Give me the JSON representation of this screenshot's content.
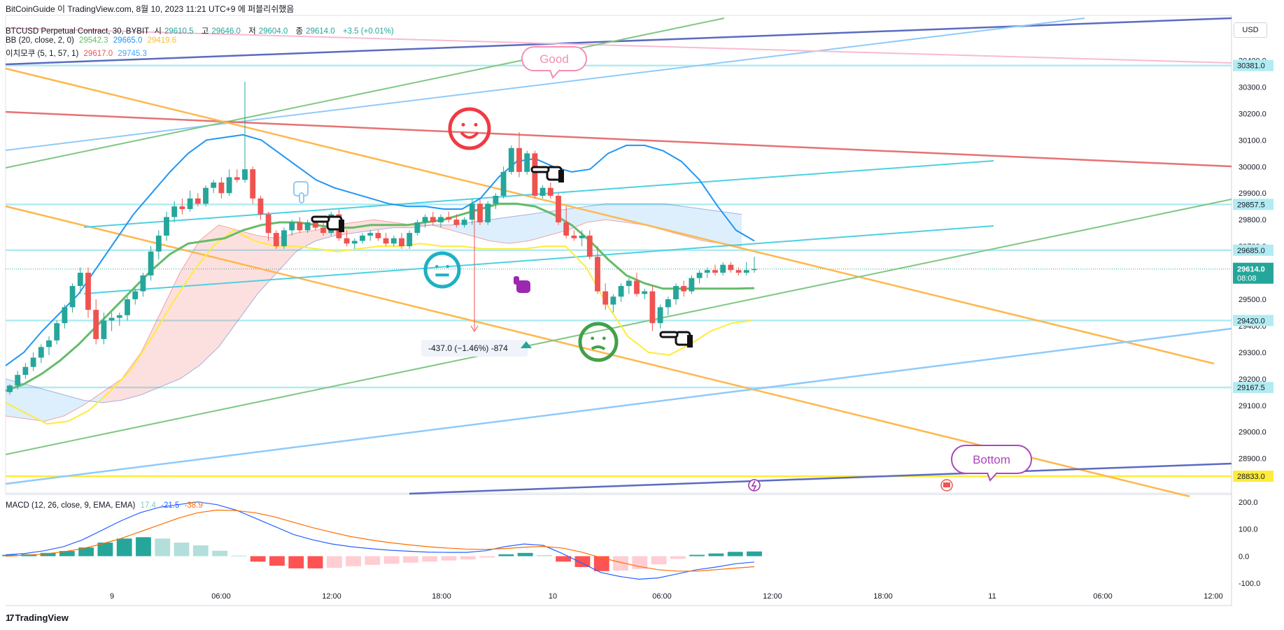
{
  "header": {
    "brand": "BitCoinGuide 이 TradingView.com, 8월 10, 2023 11:21 UTC+9 에 퍼블리쉬했음",
    "symbol": "BTCUSD Perpetual Contract, 30, BYBIT",
    "o_label": "시",
    "o": "29610.5",
    "h_label": "고",
    "h": "29646.0",
    "l_label": "저",
    "l": "29604.0",
    "c_label": "종",
    "c": "29614.0",
    "change": "+3.5 (+0.01%)",
    "bb_label": "BB (20, close, 2, 0)",
    "bb_vals": [
      "29542.3",
      "29665.0",
      "29419.6"
    ],
    "ichimoku_label": "이치모쿠 (5, 1, 57, 1)",
    "ichimoku_vals": [
      "29617.0",
      "29745.3"
    ],
    "macd_label": "MACD (12, 26, close, 9, EMA, EMA)",
    "macd_vals": [
      "17.4",
      "-21.5",
      "-38.9"
    ],
    "currency_button": "USD",
    "footer_logo": "TradingView",
    "footer_logo_mark": "17"
  },
  "colors": {
    "up": "#26a69a",
    "down": "#ef5350",
    "bb_mid": "#66bb6a",
    "bb_band": "#2196f3",
    "ichi_lead": "#f44336",
    "ichi_lag": "#42a5f5",
    "macd_line": "#2962ff",
    "signal_line": "#ff6d00",
    "hist_up": "#26a69a",
    "hist_down": "#ff5252"
  },
  "annotations": {
    "good_bubble": "Good",
    "bottom_bubble": "Bottom",
    "measure_label": "-437.0 (−1.46%) -874",
    "smiley_happy": "happy-face",
    "smiley_neutral": "neutral-face",
    "smiley_confused": "confused-face",
    "hand_icon": "pointing-hand",
    "lightning_icon": "lightning",
    "flag_icon": "us-flag"
  },
  "chart_data": [
    {
      "type": "candlestick",
      "title": "BTCUSD Perpetual Contract, 30, BYBIT",
      "ylim": [
        28770,
        30570
      ],
      "y_ticks": [
        28900,
        29000,
        29100,
        29200,
        29300,
        29400,
        29500,
        29600,
        29700,
        29800,
        29900,
        30000,
        30100,
        30200,
        30300,
        30400,
        30500
      ],
      "y_tick_labels": [
        "28900.0",
        "29000.0",
        "29100.0",
        "29200.0",
        "29300.0",
        "29400.0",
        "29500.0",
        "29600.0",
        "29700.0",
        "29800.0",
        "29900.0",
        "30000.0",
        "30100.0",
        "30200.0",
        "30300.0",
        "30400.0",
        "30500.0"
      ],
      "x_tick_labels": [
        "9",
        "06:00",
        "12:00",
        "18:00",
        "10",
        "06:00",
        "12:00",
        "18:00",
        "11",
        "06:00",
        "12:00"
      ],
      "price_tags": [
        {
          "label": "30381.0",
          "value": 30381,
          "kind": "level"
        },
        {
          "label": "29857.5",
          "value": 29857.5,
          "kind": "level"
        },
        {
          "label": "29685.0",
          "value": 29685,
          "kind": "level"
        },
        {
          "label": "29614.0",
          "value": 29614,
          "kind": "last",
          "sub": "08:08"
        },
        {
          "label": "29420.0",
          "value": 29420,
          "kind": "level"
        },
        {
          "label": "29167.5",
          "value": 29167.5,
          "kind": "level"
        },
        {
          "label": "28833.0",
          "value": 28833,
          "kind": "yellow"
        }
      ],
      "ohlc": [
        [
          29150,
          29180,
          29140,
          29175
        ],
        [
          29175,
          29230,
          29160,
          29215
        ],
        [
          29215,
          29260,
          29200,
          29245
        ],
        [
          29245,
          29300,
          29230,
          29280
        ],
        [
          29280,
          29330,
          29260,
          29320
        ],
        [
          29320,
          29360,
          29290,
          29345
        ],
        [
          29345,
          29420,
          29330,
          29410
        ],
        [
          29410,
          29480,
          29390,
          29470
        ],
        [
          29470,
          29560,
          29450,
          29550
        ],
        [
          29550,
          29620,
          29520,
          29600
        ],
        [
          29600,
          29620,
          29430,
          29460
        ],
        [
          29460,
          29500,
          29330,
          29350
        ],
        [
          29350,
          29450,
          29330,
          29420
        ],
        [
          29420,
          29450,
          29380,
          29430
        ],
        [
          29430,
          29450,
          29400,
          29440
        ],
        [
          29440,
          29510,
          29420,
          29500
        ],
        [
          29500,
          29540,
          29480,
          29530
        ],
        [
          29530,
          29600,
          29510,
          29590
        ],
        [
          29590,
          29700,
          29570,
          29680
        ],
        [
          29680,
          29760,
          29650,
          29740
        ],
        [
          29740,
          29830,
          29720,
          29810
        ],
        [
          29810,
          29870,
          29790,
          29850
        ],
        [
          29850,
          29880,
          29820,
          29840
        ],
        [
          29840,
          29910,
          29830,
          29880
        ],
        [
          29880,
          29900,
          29850,
          29860
        ],
        [
          29860,
          29930,
          29850,
          29920
        ],
        [
          29920,
          29950,
          29900,
          29940
        ],
        [
          29940,
          29960,
          29880,
          29900
        ],
        [
          29900,
          29990,
          29890,
          29960
        ],
        [
          29960,
          29990,
          29940,
          29950
        ],
        [
          29950,
          30320,
          29940,
          29990
        ],
        [
          29990,
          30000,
          29860,
          29880
        ],
        [
          29880,
          29890,
          29800,
          29820
        ],
        [
          29820,
          29830,
          29720,
          29750
        ],
        [
          29750,
          29760,
          29690,
          29700
        ],
        [
          29700,
          29770,
          29690,
          29760
        ],
        [
          29760,
          29800,
          29740,
          29790
        ],
        [
          29790,
          29810,
          29750,
          29760
        ],
        [
          29760,
          29800,
          29750,
          29790
        ],
        [
          29790,
          29810,
          29760,
          29770
        ],
        [
          29770,
          29790,
          29740,
          29750
        ],
        [
          29750,
          29830,
          29740,
          29820
        ],
        [
          29820,
          29840,
          29720,
          29730
        ],
        [
          29730,
          29760,
          29700,
          29710
        ],
        [
          29710,
          29730,
          29690,
          29720
        ],
        [
          29720,
          29750,
          29710,
          29740
        ],
        [
          29740,
          29760,
          29720,
          29750
        ],
        [
          29750,
          29760,
          29720,
          29730
        ],
        [
          29730,
          29750,
          29700,
          29710
        ],
        [
          29710,
          29740,
          29700,
          29730
        ],
        [
          29730,
          29750,
          29690,
          29700
        ],
        [
          29700,
          29760,
          29690,
          29750
        ],
        [
          29750,
          29800,
          29740,
          29790
        ],
        [
          29790,
          29820,
          29770,
          29810
        ],
        [
          29810,
          29830,
          29780,
          29790
        ],
        [
          29790,
          29820,
          29770,
          29810
        ],
        [
          29810,
          29830,
          29790,
          29800
        ],
        [
          29800,
          29820,
          29770,
          29780
        ],
        [
          29780,
          29810,
          29770,
          29800
        ],
        [
          29800,
          29880,
          29780,
          29860
        ],
        [
          29860,
          29880,
          29780,
          29790
        ],
        [
          29790,
          29870,
          29780,
          29860
        ],
        [
          29860,
          29900,
          29840,
          29890
        ],
        [
          29890,
          30000,
          29880,
          29980
        ],
        [
          29980,
          30080,
          29970,
          30070
        ],
        [
          30070,
          30130,
          29960,
          29980
        ],
        [
          29980,
          30060,
          29970,
          30050
        ],
        [
          30050,
          30060,
          29880,
          29890
        ],
        [
          29890,
          29930,
          29880,
          29920
        ],
        [
          29920,
          29940,
          29880,
          29890
        ],
        [
          29890,
          29900,
          29780,
          29790
        ],
        [
          29790,
          29850,
          29730,
          29740
        ],
        [
          29740,
          29760,
          29720,
          29730
        ],
        [
          29730,
          29760,
          29700,
          29740
        ],
        [
          29740,
          29760,
          29650,
          29660
        ],
        [
          29660,
          29700,
          29520,
          29530
        ],
        [
          29530,
          29560,
          29460,
          29480
        ],
        [
          29480,
          29520,
          29450,
          29510
        ],
        [
          29510,
          29560,
          29490,
          29550
        ],
        [
          29550,
          29580,
          29520,
          29570
        ],
        [
          29570,
          29600,
          29510,
          29520
        ],
        [
          29520,
          29540,
          29500,
          29530
        ],
        [
          29530,
          29550,
          29380,
          29410
        ],
        [
          29410,
          29480,
          29390,
          29470
        ],
        [
          29470,
          29510,
          29440,
          29500
        ],
        [
          29500,
          29560,
          29480,
          29550
        ],
        [
          29550,
          29570,
          29510,
          29530
        ],
        [
          29530,
          29590,
          29520,
          29580
        ],
        [
          29580,
          29610,
          29560,
          29600
        ],
        [
          29600,
          29620,
          29580,
          29610
        ],
        [
          29610,
          29630,
          29590,
          29600
        ],
        [
          29600,
          29640,
          29590,
          29630
        ],
        [
          29630,
          29640,
          29600,
          29610
        ],
        [
          29610,
          29620,
          29590,
          29600
        ],
        [
          29600,
          29640,
          29590,
          29610
        ],
        [
          29610,
          29660,
          29600,
          29614
        ]
      ],
      "bb_upper": [
        29250,
        29300,
        29380,
        29450,
        29520,
        29620,
        29720,
        29820,
        29900,
        29980,
        30050,
        30100,
        30110,
        30120,
        30100,
        30050,
        30000,
        29950,
        29920,
        29900,
        29880,
        29860,
        29850,
        29850,
        29840,
        29840,
        29880,
        29960,
        30020,
        30030,
        30000,
        29980,
        29990,
        30050,
        30080,
        30080,
        30060,
        30020,
        29950,
        29850,
        29760,
        29720
      ],
      "bb_mid": [
        29155,
        29180,
        29220,
        29270,
        29330,
        29400,
        29470,
        29540,
        29610,
        29670,
        29710,
        29720,
        29730,
        29760,
        29780,
        29790,
        29790,
        29780,
        29770,
        29770,
        29780,
        29780,
        29780,
        29790,
        29800,
        29820,
        29840,
        29860,
        29860,
        29850,
        29820,
        29780,
        29720,
        29650,
        29590,
        29560,
        29540,
        29540,
        29540,
        29540,
        29540,
        29542
      ],
      "bb_lower": [
        29100,
        29080,
        29060,
        29050,
        29060,
        29090,
        29130,
        29180,
        29250,
        29330,
        29390,
        29460,
        29520,
        29580,
        29640,
        29690,
        29700,
        29700,
        29690,
        29690,
        29700,
        29700,
        29690,
        29690,
        29700,
        29700,
        29690,
        29680,
        29660,
        29640,
        29600,
        29520,
        29420,
        29350,
        29300,
        29280,
        29300,
        29330,
        29360,
        29390,
        29410,
        29419.6
      ],
      "ichimoku_lead_a": [
        29060,
        29050,
        29040,
        29060,
        29100,
        29150,
        29200,
        29300,
        29450,
        29600,
        29720,
        29780,
        29760,
        29740,
        29730,
        29750,
        29760,
        29780,
        29790,
        29800,
        29790,
        29780,
        29780,
        29760,
        29740,
        29720,
        29710,
        29720,
        29740,
        29760,
        29790,
        29800,
        29790,
        29780,
        29760,
        29740,
        29720,
        29710,
        29700
      ],
      "ichimoku_lead_b": [
        29200,
        29180,
        29160,
        29140,
        29120,
        29110,
        29120,
        29140,
        29170,
        29200,
        29250,
        29320,
        29420,
        29520,
        29600,
        29680,
        29720,
        29740,
        29750,
        29760,
        29770,
        29770,
        29780,
        29780,
        29790,
        29800,
        29810,
        29820,
        29830,
        29840,
        29850,
        29860,
        29860,
        29860,
        29860,
        29850,
        29840,
        29830,
        29820
      ],
      "ichimoku_lagging": [
        29110,
        29070,
        29030,
        29040,
        29080,
        29150,
        29230,
        29350,
        29480,
        29600,
        29700,
        29760,
        29720,
        29700,
        29700,
        29690,
        29680,
        29690,
        29700,
        29700,
        29710,
        29700,
        29700,
        29690,
        29690,
        29690,
        29700,
        29700,
        29620,
        29480,
        29360,
        29300,
        29290,
        29330,
        29380,
        29410,
        29420
      ],
      "macd": {
        "ylim": [
          -120,
          215
        ],
        "y_tick_labels": [
          "200.0",
          "100.0",
          "0.0",
          "-100.0"
        ],
        "y_ticks": [
          200,
          100,
          0,
          -100
        ],
        "macd_line": [
          5,
          10,
          20,
          35,
          60,
          95,
          130,
          160,
          180,
          190,
          200,
          190,
          170,
          140,
          110,
          80,
          60,
          45,
          35,
          28,
          22,
          18,
          15,
          14,
          14,
          20,
          35,
          45,
          40,
          10,
          -25,
          -60,
          -75,
          -85,
          -80,
          -65,
          -50,
          -40,
          -28,
          -21.5
        ],
        "signal_line": [
          0,
          3,
          8,
          16,
          28,
          45,
          65,
          90,
          115,
          140,
          160,
          170,
          168,
          160,
          145,
          125,
          105,
          88,
          72,
          60,
          50,
          42,
          35,
          30,
          26,
          25,
          28,
          33,
          36,
          30,
          15,
          -5,
          -22,
          -38,
          -50,
          -55,
          -55,
          -50,
          -44,
          -38.9
        ],
        "histogram": [
          5,
          7,
          12,
          19,
          32,
          50,
          65,
          70,
          65,
          50,
          40,
          20,
          2,
          -20,
          -35,
          -45,
          -45,
          -43,
          -37,
          -32,
          -28,
          -24,
          -20,
          -16,
          -12,
          -5,
          7,
          12,
          4,
          -20,
          -40,
          -55,
          -53,
          -47,
          -30,
          -10,
          5,
          10,
          16,
          17.4
        ]
      }
    }
  ]
}
